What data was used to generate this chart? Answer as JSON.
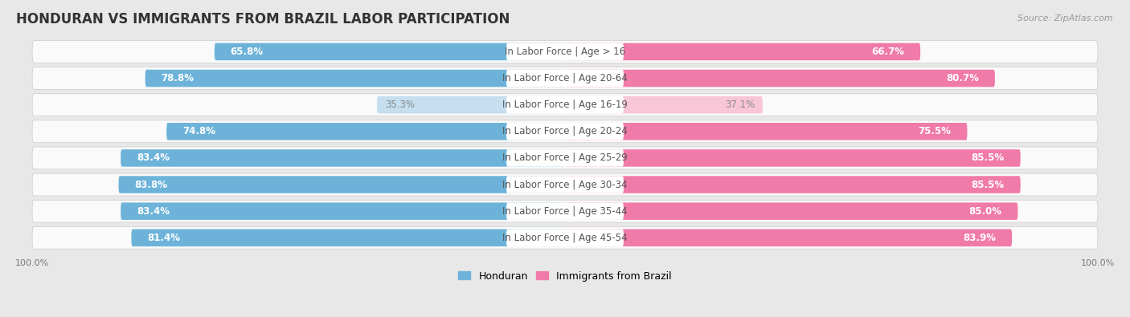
{
  "title": "HONDURAN VS IMMIGRANTS FROM BRAZIL LABOR PARTICIPATION",
  "source": "Source: ZipAtlas.com",
  "categories": [
    "In Labor Force | Age > 16",
    "In Labor Force | Age 20-64",
    "In Labor Force | Age 16-19",
    "In Labor Force | Age 20-24",
    "In Labor Force | Age 25-29",
    "In Labor Force | Age 30-34",
    "In Labor Force | Age 35-44",
    "In Labor Force | Age 45-54"
  ],
  "honduran_values": [
    65.8,
    78.8,
    35.3,
    74.8,
    83.4,
    83.8,
    83.4,
    81.4
  ],
  "brazil_values": [
    66.7,
    80.7,
    37.1,
    75.5,
    85.5,
    85.5,
    85.0,
    83.9
  ],
  "honduran_color": "#6db3d9",
  "brazil_color": "#f07aa8",
  "honduran_light_color": "#c5dff0",
  "brazil_light_color": "#f9c6d8",
  "row_bg_color": "#f2f2f2",
  "background_color": "#e8e8e8",
  "pill_bg_color": "#fafafa",
  "center_label_bg": "#ffffff",
  "title_fontsize": 12,
  "label_fontsize": 8.5,
  "value_fontsize": 8.5,
  "tick_fontsize": 8,
  "legend_fontsize": 9,
  "source_fontsize": 8
}
